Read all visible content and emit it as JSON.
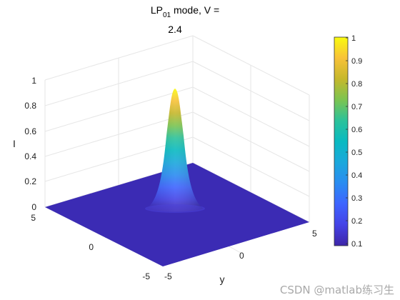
{
  "chart_data": {
    "type": "surface",
    "title_line1_prefix": "LP",
    "title_line1_subscript": "01",
    "title_line1_suffix": " mode, V =",
    "title_line2": "2.4",
    "xlabel": "",
    "ylabel": "y",
    "zlabel": "I",
    "x_ticks": [
      "5",
      "0",
      "-5"
    ],
    "y_ticks": [
      "-5",
      "0",
      "5"
    ],
    "z_ticks": [
      "0",
      "0.2",
      "0.4",
      "0.6",
      "0.8",
      "1"
    ],
    "xlim": [
      -5,
      5
    ],
    "ylim": [
      -5,
      5
    ],
    "zlim": [
      0,
      1
    ],
    "grid": true,
    "surface": {
      "function": "gaussian",
      "peak_value": 1,
      "peak_x": 0,
      "peak_y": 0
    },
    "colorbar": {
      "colormap": "parula",
      "ticks": [
        "0.1",
        "0.2",
        "0.3",
        "0.4",
        "0.5",
        "0.6",
        "0.7",
        "0.8",
        "0.9",
        "1"
      ],
      "range": [
        0,
        1
      ],
      "position": "right"
    }
  },
  "watermark": "CSDN @matlab练习生"
}
